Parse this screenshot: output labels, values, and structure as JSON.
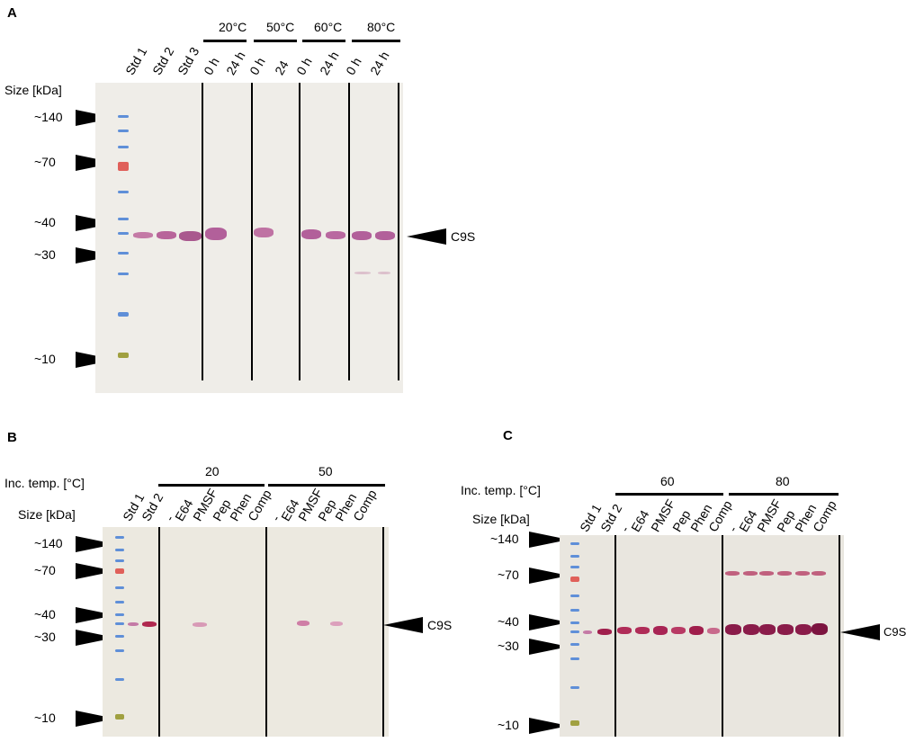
{
  "panel_a": {
    "letter": "A",
    "temps": [
      "20°C",
      "50°C",
      "60°C",
      "80°C"
    ],
    "lanes": [
      "Std 1",
      "Std 2",
      "Std 3",
      "0 h",
      "24 h",
      "0 h",
      "24",
      "0 h",
      "24 h",
      "0 h",
      "24 h"
    ],
    "size_header": "Size [kDa]",
    "markers": [
      "~140",
      "~70",
      "~40",
      "~30",
      "~10"
    ],
    "target": "C9S"
  },
  "panel_b": {
    "letter": "B",
    "temp_header": "Inc. temp. [°C]",
    "size_header": "Size [kDa]",
    "temps": [
      "20",
      "50"
    ],
    "lanes": [
      "Std 1",
      "Std 2",
      "-",
      "E64",
      "PMSF",
      "Pep",
      "Phen",
      "Comp",
      "-",
      "E64",
      "PMSF",
      "Pep",
      "Phen",
      "Comp"
    ],
    "markers": [
      "~140",
      "~70",
      "~40",
      "~30",
      "~10"
    ],
    "target": "C9S"
  },
  "panel_c": {
    "letter": "C",
    "temp_header": "Inc. temp. [°C]",
    "size_header": "Size [kDa]",
    "temps": [
      "60",
      "80"
    ],
    "lanes": [
      "Std 1",
      "Std 2",
      "-",
      "E64",
      "PMSF",
      "Pep",
      "Phen",
      "Comp",
      "-",
      "E64",
      "PMSF",
      "Pep",
      "Phen",
      "Comp"
    ],
    "markers": [
      "~140",
      "~70",
      "~40",
      "~30",
      "~10"
    ],
    "target": "C9S"
  },
  "colors": {
    "blot": "#ecebe4",
    "band": "#b05a8e",
    "band_dark": "#8a1c4a",
    "ladder_blue": "#5f8fd8",
    "ladder_red": "#e0605a",
    "ladder_green": "#a0a040"
  }
}
